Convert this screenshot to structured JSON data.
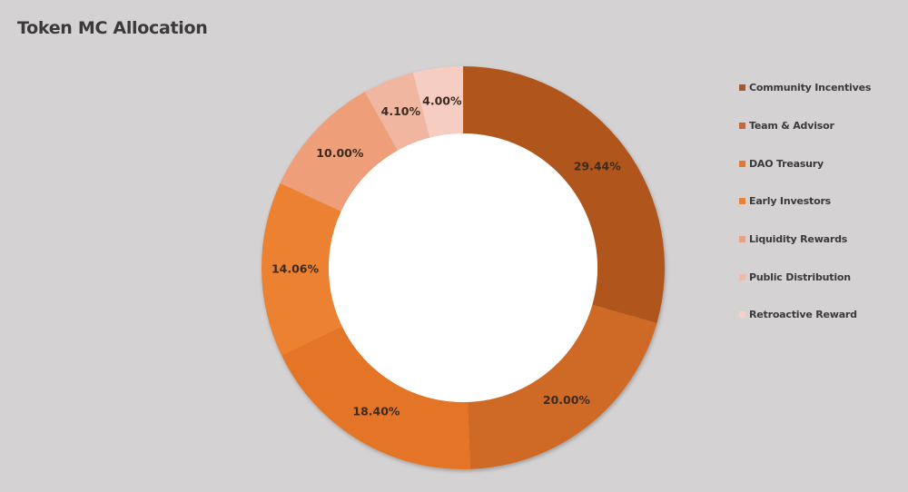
{
  "title": "Token MC Allocation",
  "chart_data": {
    "type": "pie",
    "subtype": "doughnut",
    "title": "Token MC Allocation",
    "categories": [
      "Community Incentives",
      "Team & Advisor",
      "DAO Treasury",
      "Early Investors",
      "Liquidity Rewards",
      "Public Distribution",
      "Retroactive Reward"
    ],
    "values": [
      29.44,
      20.0,
      18.4,
      14.06,
      10.0,
      4.1,
      4.0
    ],
    "labels": [
      "29.44%",
      "20.00%",
      "18.40%",
      "14.06%",
      "10.00%",
      "4.10%",
      "4.00%"
    ],
    "colors": [
      "#b0571f",
      "#cf6a28",
      "#e57527",
      "#ec8133",
      "#ee9f79",
      "#f1b6a0",
      "#f5cdc2"
    ],
    "start_angle_deg": 0,
    "direction": "clockwise",
    "legend_position": "right",
    "unit": "%"
  },
  "legend": {
    "items": [
      {
        "label": "Community Incentives",
        "color": "#a35a32"
      },
      {
        "label": "Team & Advisor",
        "color": "#c2683a"
      },
      {
        "label": "DAO Treasury",
        "color": "#de7a35"
      },
      {
        "label": "Early Investors",
        "color": "#e7823a"
      },
      {
        "label": "Liquidity Rewards",
        "color": "#e7a186"
      },
      {
        "label": "Public Distribution",
        "color": "#edbbaa"
      },
      {
        "label": "Retroactive Reward",
        "color": "#f1d1c8"
      }
    ]
  }
}
